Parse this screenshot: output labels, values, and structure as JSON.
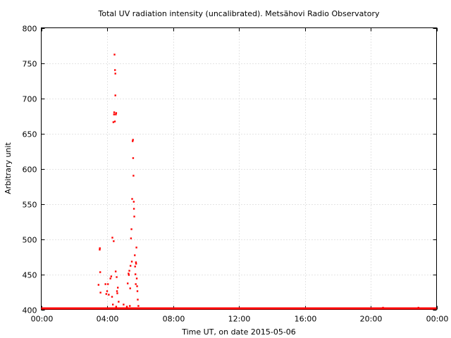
{
  "chart_data": {
    "type": "scatter",
    "title": "Total UV radiation intensity (uncalibrated). Metsähovi Radio Observatory",
    "xlabel": "Time UT, on date 2015-05-06",
    "ylabel": "Arbitrary unit",
    "xlim": [
      0,
      24
    ],
    "ylim": [
      400,
      800
    ],
    "x_unit": "hours UT",
    "x_ticks": [
      0,
      4,
      8,
      12,
      16,
      20,
      24
    ],
    "x_tick_labels": [
      "00:00",
      "04:00",
      "08:00",
      "12:00",
      "16:00",
      "20:00",
      "00:00"
    ],
    "y_ticks": [
      400,
      450,
      500,
      550,
      600,
      650,
      700,
      750,
      800
    ],
    "y_tick_labels": [
      "400",
      "450",
      "500",
      "550",
      "600",
      "650",
      "700",
      "750",
      "800"
    ],
    "grid": true,
    "color": "#ff0000",
    "baseline": {
      "value": 401.5,
      "x_start": 0,
      "x_end": 24
    },
    "points": [
      [
        3.48,
        435
      ],
      [
        3.55,
        485
      ],
      [
        3.56,
        487
      ],
      [
        3.58,
        453
      ],
      [
        3.6,
        424
      ],
      [
        3.9,
        436
      ],
      [
        3.95,
        422
      ],
      [
        4.0,
        426
      ],
      [
        4.05,
        436
      ],
      [
        4.1,
        421
      ],
      [
        4.2,
        444
      ],
      [
        4.25,
        447
      ],
      [
        4.3,
        418
      ],
      [
        4.32,
        502
      ],
      [
        4.35,
        407
      ],
      [
        4.38,
        666
      ],
      [
        4.4,
        497
      ],
      [
        4.42,
        677
      ],
      [
        4.43,
        680
      ],
      [
        4.45,
        762
      ],
      [
        4.47,
        667
      ],
      [
        4.48,
        740
      ],
      [
        4.5,
        735
      ],
      [
        4.5,
        704
      ],
      [
        4.52,
        454
      ],
      [
        4.53,
        677
      ],
      [
        4.55,
        679
      ],
      [
        4.55,
        404
      ],
      [
        4.58,
        446
      ],
      [
        4.6,
        426
      ],
      [
        4.62,
        423
      ],
      [
        4.65,
        431
      ],
      [
        4.7,
        411
      ],
      [
        5.0,
        407
      ],
      [
        5.2,
        404
      ],
      [
        5.25,
        437
      ],
      [
        5.3,
        451
      ],
      [
        5.32,
        449
      ],
      [
        5.35,
        455
      ],
      [
        5.38,
        405
      ],
      [
        5.4,
        430
      ],
      [
        5.42,
        462
      ],
      [
        5.45,
        501
      ],
      [
        5.48,
        514
      ],
      [
        5.5,
        468
      ],
      [
        5.52,
        557
      ],
      [
        5.55,
        639
      ],
      [
        5.57,
        641
      ],
      [
        5.58,
        615
      ],
      [
        5.6,
        590
      ],
      [
        5.62,
        553
      ],
      [
        5.63,
        543
      ],
      [
        5.65,
        532
      ],
      [
        5.68,
        477
      ],
      [
        5.7,
        461
      ],
      [
        5.72,
        450
      ],
      [
        5.74,
        436
      ],
      [
        5.75,
        467
      ],
      [
        5.76,
        465
      ],
      [
        5.78,
        488
      ],
      [
        5.8,
        444
      ],
      [
        5.82,
        433
      ],
      [
        5.84,
        426
      ],
      [
        5.86,
        414
      ],
      [
        5.9,
        405
      ],
      [
        20.75,
        402.5
      ],
      [
        22.9,
        402.5
      ]
    ]
  }
}
